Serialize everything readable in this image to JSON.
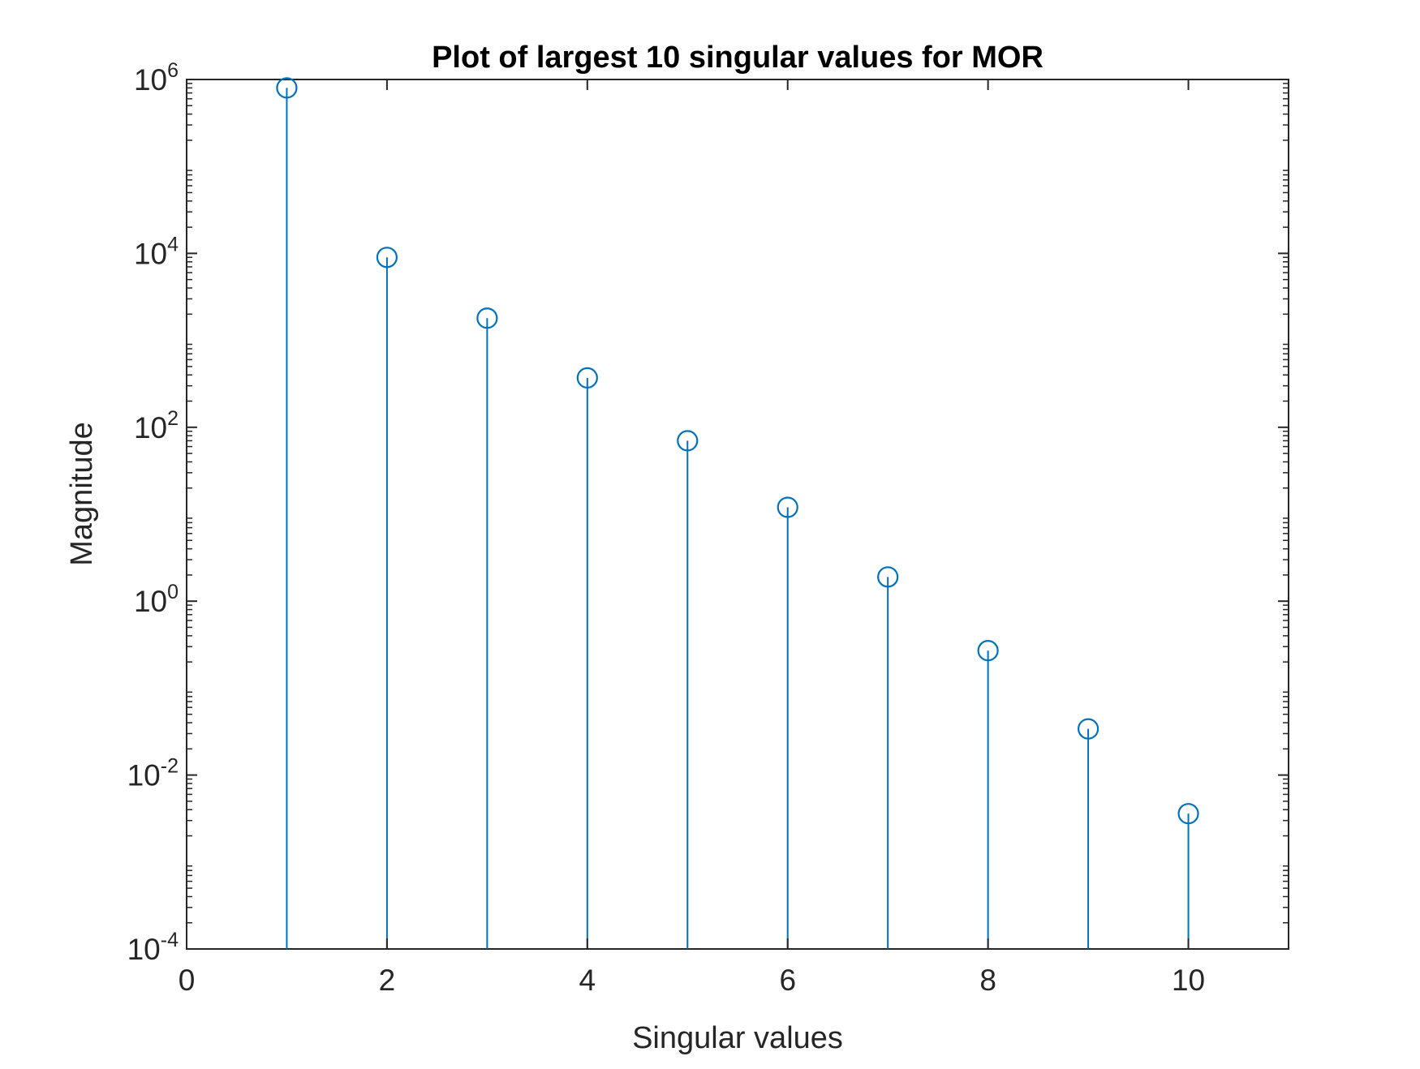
{
  "chart_data": {
    "type": "scatter",
    "style": "stem",
    "title": "Plot of largest 10 singular values for MOR",
    "xlabel": "Singular values",
    "ylabel": "Magnitude",
    "xlim": [
      0,
      11
    ],
    "ylim": [
      0.0001,
      1000000
    ],
    "yscale": "log",
    "grid": false,
    "x": [
      1,
      2,
      3,
      4,
      5,
      6,
      7,
      8,
      9,
      10
    ],
    "values": [
      800000,
      9000,
      1800,
      370,
      70,
      12,
      1.9,
      0.27,
      0.034,
      0.0036
    ],
    "xticks": [
      {
        "value": 0,
        "label": "0"
      },
      {
        "value": 2,
        "label": "2"
      },
      {
        "value": 4,
        "label": "4"
      },
      {
        "value": 6,
        "label": "6"
      },
      {
        "value": 8,
        "label": "8"
      },
      {
        "value": 10,
        "label": "10"
      }
    ],
    "yticks": [
      {
        "value": 0.0001,
        "base": "10",
        "exp": "-4"
      },
      {
        "value": 0.01,
        "base": "10",
        "exp": "-2"
      },
      {
        "value": 1,
        "base": "10",
        "exp": "0"
      },
      {
        "value": 100,
        "base": "10",
        "exp": "2"
      },
      {
        "value": 10000,
        "base": "10",
        "exp": "4"
      },
      {
        "value": 1000000,
        "base": "10",
        "exp": "6"
      }
    ],
    "colors": {
      "series": "#0072bd",
      "axes": "#262626",
      "title": "#000000",
      "background": "#ffffff"
    }
  }
}
